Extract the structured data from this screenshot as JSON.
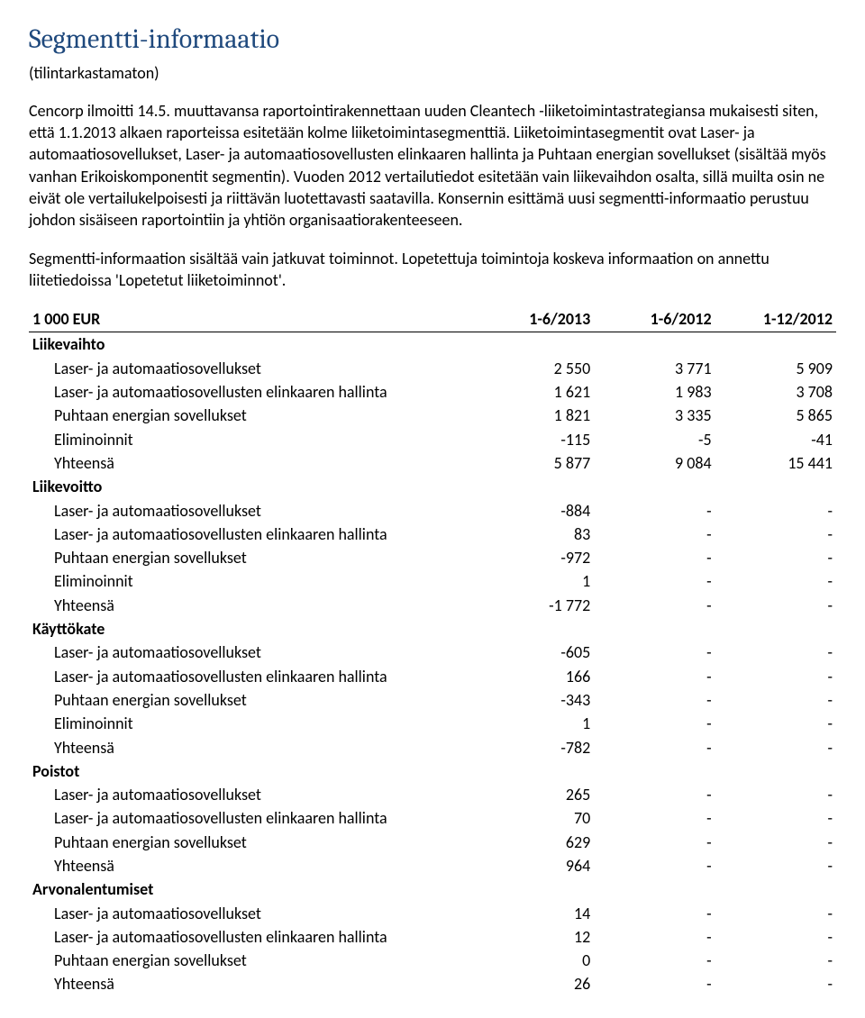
{
  "title": "Segmentti-informaatio",
  "subtitle": "(tilintarkastamaton)",
  "para1": "Cencorp ilmoitti 14.5. muuttavansa raportointirakennettaan uuden Cleantech -liiketoimintastrategiansa mukaisesti siten, että 1.1.2013 alkaen raporteissa esitetään kolme liiketoimintasegmenttiä. Liiketoimintasegmentit ovat Laser- ja automaatiosovellukset, Laser- ja automaatiosovellusten elinkaaren hallinta ja Puhtaan energian sovellukset (sisältää myös vanhan Erikoiskomponentit segmentin). Vuoden 2012 vertailutiedot esitetään vain liikevaihdon osalta, sillä muilta osin ne eivät ole vertailukelpoisesti ja riittävän luotettavasti saatavilla. Konsernin esittämä uusi segmentti-informaatio perustuu johdon sisäiseen raportointiin ja yhtiön organisaatiorakenteeseen.",
  "para2": "Segmentti-informaation sisältää vain jatkuvat toiminnot. Lopetettuja toimintoja koskeva informaation on annettu liitetiedoissa 'Lopetetut liiketoiminnot'.",
  "table": {
    "header": {
      "label": "1 000 EUR",
      "c1": "1-6/2013",
      "c2": "1-6/2012",
      "c3": "1-12/2012"
    },
    "sections": [
      {
        "title": "Liikevaihto",
        "rows": [
          {
            "label": "Laser- ja automaatiosovellukset",
            "c1": "2 550",
            "c2": "3 771",
            "c3": "5 909"
          },
          {
            "label": "Laser- ja automaatiosovellusten elinkaaren hallinta",
            "c1": "1 621",
            "c2": "1 983",
            "c3": "3 708"
          },
          {
            "label": "Puhtaan energian sovellukset",
            "c1": "1 821",
            "c2": "3 335",
            "c3": "5 865"
          },
          {
            "label": "Eliminoinnit",
            "c1": "-115",
            "c2": "-5",
            "c3": "-41"
          },
          {
            "label": "Yhteensä",
            "c1": "5 877",
            "c2": "9 084",
            "c3": "15 441"
          }
        ]
      },
      {
        "title": "Liikevoitto",
        "rows": [
          {
            "label": "Laser- ja automaatiosovellukset",
            "c1": "-884",
            "c2": "-",
            "c3": "-"
          },
          {
            "label": "Laser- ja automaatiosovellusten elinkaaren hallinta",
            "c1": "83",
            "c2": "-",
            "c3": "-"
          },
          {
            "label": "Puhtaan energian sovellukset",
            "c1": "-972",
            "c2": "-",
            "c3": "-"
          },
          {
            "label": "Eliminoinnit",
            "c1": "1",
            "c2": "-",
            "c3": "-"
          },
          {
            "label": "Yhteensä",
            "c1": "-1 772",
            "c2": "-",
            "c3": "-"
          }
        ]
      },
      {
        "title": "Käyttökate",
        "rows": [
          {
            "label": "Laser- ja automaatiosovellukset",
            "c1": "-605",
            "c2": "-",
            "c3": "-"
          },
          {
            "label": "Laser- ja automaatiosovellusten elinkaaren hallinta",
            "c1": "166",
            "c2": "-",
            "c3": "-"
          },
          {
            "label": "Puhtaan energian sovellukset",
            "c1": "-343",
            "c2": "-",
            "c3": "-"
          },
          {
            "label": "Eliminoinnit",
            "c1": "1",
            "c2": "-",
            "c3": "-"
          },
          {
            "label": "Yhteensä",
            "c1": "-782",
            "c2": "-",
            "c3": "-"
          }
        ]
      },
      {
        "title": "Poistot",
        "rows": [
          {
            "label": "Laser- ja automaatiosovellukset",
            "c1": "265",
            "c2": "-",
            "c3": "-"
          },
          {
            "label": "Laser- ja automaatiosovellusten elinkaaren hallinta",
            "c1": "70",
            "c2": "-",
            "c3": "-"
          },
          {
            "label": "Puhtaan energian sovellukset",
            "c1": "629",
            "c2": "-",
            "c3": "-"
          },
          {
            "label": "Yhteensä",
            "c1": "964",
            "c2": "-",
            "c3": "-"
          }
        ]
      },
      {
        "title": "Arvonalentumiset",
        "rows": [
          {
            "label": "Laser- ja automaatiosovellukset",
            "c1": "14",
            "c2": "-",
            "c3": "-"
          },
          {
            "label": "Laser- ja automaatiosovellusten elinkaaren hallinta",
            "c1": "12",
            "c2": "-",
            "c3": "-"
          },
          {
            "label": "Puhtaan energian sovellukset",
            "c1": "0",
            "c2": "-",
            "c3": "-"
          },
          {
            "label": "Yhteensä",
            "c1": "26",
            "c2": "-",
            "c3": "-"
          }
        ]
      }
    ]
  }
}
